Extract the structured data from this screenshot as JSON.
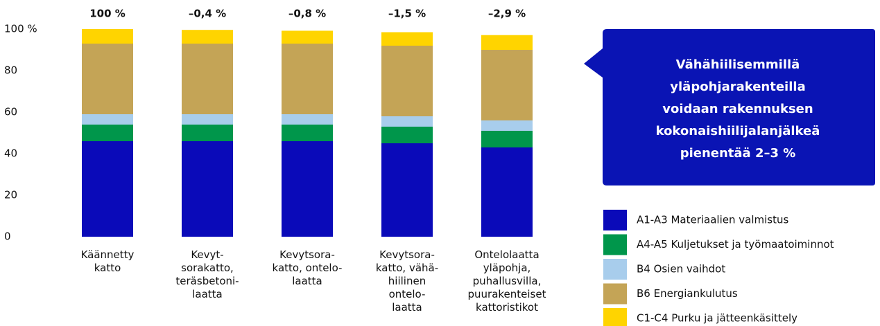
{
  "chart_data": {
    "type": "stacked_bar",
    "categories": [
      "Käännetty\nkatto",
      "Kevyt-\nsorakatto,\nteräsbetoni-\nlaatta",
      "Kevytsora-\nkatto, ontelo-\nlaatta",
      "Kevytsora-\nkatto, vähä-\nhiilinen\nontelo-\nlaatta",
      "Ontelolaatta\nyläpohja,\npuhallusvilla,\npuurakenteiset\nkattoristikot"
    ],
    "top_labels": [
      "100 %",
      "–0,4 %",
      "–0,8 %",
      "–1,5 %",
      "–2,9 %"
    ],
    "series": [
      {
        "name": "A1-A3 Materiaalien valmistus",
        "color": "#0a0ab9",
        "values": [
          46,
          46,
          46,
          45,
          43
        ]
      },
      {
        "name": "A4-A5 Kuljetukset ja työmaatoiminnot",
        "color": "#00964b",
        "values": [
          8,
          8,
          8,
          8,
          8
        ]
      },
      {
        "name": "B4 Osien vaihdot",
        "color": "#a8cdec",
        "values": [
          5,
          5,
          5,
          5,
          5
        ]
      },
      {
        "name": "B6 Energiankulutus",
        "color": "#c4a456",
        "values": [
          34,
          34,
          34,
          34,
          34
        ]
      },
      {
        "name": "C1-C4 Purku ja jätteenkäsittely",
        "color": "#ffd400",
        "values": [
          7,
          6.6,
          6.2,
          6.5,
          7.1
        ]
      }
    ],
    "ylim": [
      0,
      100
    ],
    "yticks": [
      0,
      20,
      40,
      60,
      80,
      {
        "value": 100,
        "label": "100 %"
      }
    ],
    "grid": false,
    "legend": "right",
    "annotation": "Vähähiilisemmillä\nyläpohjarakenteilla\nvoidaan rakennuksen\nkokonaishiilijalanjälkeä\npienentää 2–3 %"
  }
}
